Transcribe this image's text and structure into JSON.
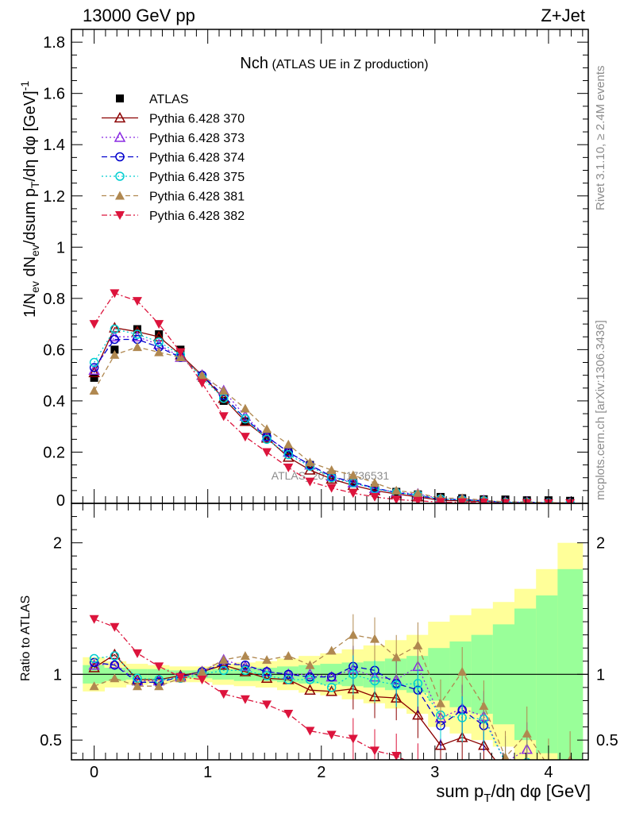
{
  "header": {
    "left": "13000 GeV pp",
    "right": "Z+Jet"
  },
  "side_labels": {
    "top": "Rivet 3.1.10, ≥ 2.4M events",
    "bottom": "mcplots.cern.ch [arXiv:1306.3436]"
  },
  "watermark": "ATLAS_2014_I1736531",
  "chart_data": [
    {
      "type": "line",
      "panel": "main",
      "title": "Nch",
      "subtitle": "(ATLAS UE in Z production)",
      "ylabel": "1/N_ev dN_ev/dsum p_T/dη dφ [GeV]^-1",
      "xlim": [
        -0.2,
        4.35
      ],
      "ylim": [
        0,
        1.85
      ],
      "yticks": [
        0.2,
        0.4,
        0.6,
        0.8,
        1,
        1.2,
        1.4,
        1.6,
        1.8
      ],
      "ytick_labels": [
        "0.2",
        "0.4",
        "0.6",
        "0.8",
        "1",
        "1.2",
        "1.4",
        "1.6",
        "1.8"
      ],
      "legend_position": "top-left",
      "x": [
        0,
        0.18,
        0.38,
        0.57,
        0.76,
        0.95,
        1.14,
        1.33,
        1.52,
        1.71,
        1.9,
        2.09,
        2.28,
        2.47,
        2.66,
        2.85,
        3.05,
        3.24,
        3.43,
        3.62,
        3.81,
        4.0,
        4.19
      ],
      "series": [
        {
          "name": "ATLAS",
          "color": "#000000",
          "marker": "square",
          "dash": "none",
          "values": [
            0.49,
            0.6,
            0.68,
            0.66,
            0.6,
            0.49,
            0.4,
            0.32,
            0.26,
            0.2,
            0.15,
            0.11,
            0.08,
            0.06,
            0.045,
            0.035,
            0.025,
            0.02,
            0.016,
            0.015,
            0.012,
            0.012,
            0.01
          ]
        },
        {
          "name": "Pythia 6.428 370",
          "color": "#8b0000",
          "marker": "triangle-open",
          "dash": "none",
          "values": [
            0.51,
            0.685,
            0.67,
            0.65,
            0.58,
            0.5,
            0.41,
            0.32,
            0.255,
            0.18,
            0.13,
            0.095,
            0.07,
            0.05,
            0.037,
            0.025,
            0.012,
            0.01,
            0.007,
            0.004,
            0.003,
            0.002,
            0.001
          ]
        },
        {
          "name": "Pythia 6.428 373",
          "color": "#8a2be2",
          "marker": "triangle-open",
          "dash": "2,3",
          "values": [
            0.52,
            0.65,
            0.65,
            0.62,
            0.57,
            0.5,
            0.44,
            0.34,
            0.26,
            0.2,
            0.15,
            0.105,
            0.08,
            0.058,
            0.043,
            0.037,
            0.017,
            0.015,
            0.011,
            0.005,
            0.005,
            0.002,
            0.001
          ]
        },
        {
          "name": "Pythia 6.428 374",
          "color": "#0000cd",
          "marker": "circle-open",
          "dash": "7,4",
          "values": [
            0.53,
            0.64,
            0.64,
            0.61,
            0.57,
            0.5,
            0.42,
            0.33,
            0.26,
            0.2,
            0.15,
            0.105,
            0.083,
            0.06,
            0.042,
            0.031,
            0.015,
            0.015,
            0.01,
            0.004,
            0.004,
            0.002,
            0.001
          ]
        },
        {
          "name": "Pythia 6.428 375",
          "color": "#00ced1",
          "marker": "circle-open",
          "dash": "2,3",
          "values": [
            0.55,
            0.68,
            0.66,
            0.63,
            0.58,
            0.49,
            0.41,
            0.33,
            0.25,
            0.19,
            0.145,
            0.1,
            0.08,
            0.057,
            0.042,
            0.033,
            0.017,
            0.013,
            0.01,
            0.004,
            0.004,
            0.002,
            0.001
          ]
        },
        {
          "name": "Pythia 6.428 381",
          "color": "#b08850",
          "marker": "triangle-filled",
          "dash": "6,4",
          "values": [
            0.44,
            0.58,
            0.61,
            0.59,
            0.57,
            0.5,
            0.44,
            0.37,
            0.29,
            0.23,
            0.16,
            0.13,
            0.11,
            0.08,
            0.05,
            0.04,
            0.02,
            0.02,
            0.012,
            0.006,
            0.006,
            0.003,
            0.002
          ]
        },
        {
          "name": "Pythia 6.428 382",
          "color": "#dc143c",
          "marker": "triangle-down-filled",
          "dash": "7,3,2,3",
          "values": [
            0.7,
            0.82,
            0.79,
            0.7,
            0.59,
            0.47,
            0.34,
            0.26,
            0.2,
            0.14,
            0.085,
            0.06,
            0.04,
            0.025,
            0.015,
            0.01,
            0.005,
            0.004,
            0.003,
            0.001,
            0.001,
            0.0005,
            0.0003
          ]
        }
      ]
    },
    {
      "type": "line",
      "panel": "ratio",
      "ylabel": "Ratio to ATLAS",
      "xlabel": "sum p_T/dη dφ [GeV]",
      "xlim": [
        -0.2,
        4.35
      ],
      "ylim": [
        0.35,
        2.3
      ],
      "yticks": [
        0.5,
        1,
        2
      ],
      "ytick_labels": [
        "0.5",
        "1",
        "2"
      ],
      "xticks": [
        0,
        1,
        2,
        3,
        4
      ],
      "xtick_labels": [
        "0",
        "1",
        "2",
        "3",
        "4"
      ],
      "x": [
        0,
        0.18,
        0.38,
        0.57,
        0.76,
        0.95,
        1.14,
        1.33,
        1.52,
        1.71,
        1.9,
        2.09,
        2.28,
        2.47,
        2.66,
        2.85,
        3.05,
        3.24,
        3.43,
        3.62,
        3.81,
        4.0,
        4.19
      ],
      "band_edges": [
        -0.1,
        0.09,
        0.28,
        0.47,
        0.66,
        0.85,
        1.04,
        1.23,
        1.42,
        1.61,
        1.8,
        1.99,
        2.18,
        2.37,
        2.56,
        2.75,
        2.94,
        3.13,
        3.32,
        3.51,
        3.7,
        3.89,
        4.08,
        4.3
      ],
      "band_inner": [
        0.07,
        0.05,
        0.04,
        0.04,
        0.03,
        0.03,
        0.04,
        0.05,
        0.05,
        0.06,
        0.07,
        0.08,
        0.09,
        0.1,
        0.12,
        0.14,
        0.2,
        0.25,
        0.3,
        0.38,
        0.5,
        0.6,
        0.8
      ],
      "band_outer": [
        0.13,
        0.1,
        0.08,
        0.07,
        0.06,
        0.06,
        0.08,
        0.09,
        0.1,
        0.12,
        0.14,
        0.16,
        0.19,
        0.22,
        0.26,
        0.3,
        0.4,
        0.45,
        0.5,
        0.55,
        0.65,
        0.8,
        1.0
      ],
      "series": [
        {
          "name": "Pythia 6.428 370",
          "color": "#8b0000",
          "marker": "triangle-open",
          "dash": "none",
          "values": [
            1.05,
            1.15,
            0.96,
            0.96,
            0.99,
            1.02,
            1.07,
            1.02,
            0.97,
            0.96,
            0.88,
            0.87,
            0.89,
            0.83,
            0.82,
            0.69,
            0.46,
            0.52,
            0.46,
            0.25,
            null,
            null,
            null
          ]
        },
        {
          "name": "Pythia 6.428 373",
          "color": "#8a2be2",
          "marker": "triangle-open",
          "dash": "2,3",
          "values": [
            1.07,
            1.08,
            0.95,
            0.95,
            0.98,
            1.02,
            1.11,
            1.06,
            1.02,
            1.0,
            1.0,
            0.98,
            1.04,
            0.98,
            0.96,
            1.06,
            0.67,
            0.74,
            0.68,
            0.33,
            0.43,
            null,
            null
          ]
        },
        {
          "name": "Pythia 6.428 374",
          "color": "#0000cd",
          "marker": "circle-open",
          "dash": "7,4",
          "values": [
            1.09,
            1.07,
            0.94,
            0.94,
            0.98,
            1.02,
            1.08,
            1.07,
            1.02,
            1.0,
            0.98,
            0.98,
            1.06,
            1.03,
            0.93,
            0.88,
            0.61,
            0.73,
            0.61,
            null,
            null,
            null,
            null
          ]
        },
        {
          "name": "Pythia 6.428 375",
          "color": "#00ced1",
          "marker": "circle-open",
          "dash": "2,3",
          "values": [
            1.12,
            1.14,
            0.97,
            0.96,
            0.97,
            1.0,
            1.03,
            1.03,
            0.99,
            0.96,
            0.96,
            0.9,
            1.0,
            0.95,
            0.92,
            0.93,
            0.69,
            0.67,
            0.66,
            0.33,
            0.33,
            null,
            null
          ]
        },
        {
          "name": "Pythia 6.428 381",
          "color": "#b08850",
          "marker": "triangle-filled",
          "dash": "6,4",
          "values": [
            0.91,
            0.97,
            0.91,
            0.91,
            0.97,
            1.02,
            1.11,
            1.14,
            1.11,
            1.14,
            1.07,
            1.18,
            1.3,
            1.27,
            1.13,
            1.22,
            0.78,
            1.02,
            0.76,
            0.37,
            0.55,
            0.3,
            0.35
          ]
        },
        {
          "name": "Pythia 6.428 382",
          "color": "#dc143c",
          "marker": "triangle-down-filled",
          "dash": "7,3,2,3",
          "values": [
            1.42,
            1.36,
            1.16,
            1.06,
            0.98,
            0.96,
            0.85,
            0.81,
            0.77,
            0.7,
            0.57,
            0.54,
            0.51,
            0.42,
            0.38,
            0.3,
            null,
            null,
            null,
            null,
            null,
            null,
            null
          ]
        }
      ]
    }
  ]
}
